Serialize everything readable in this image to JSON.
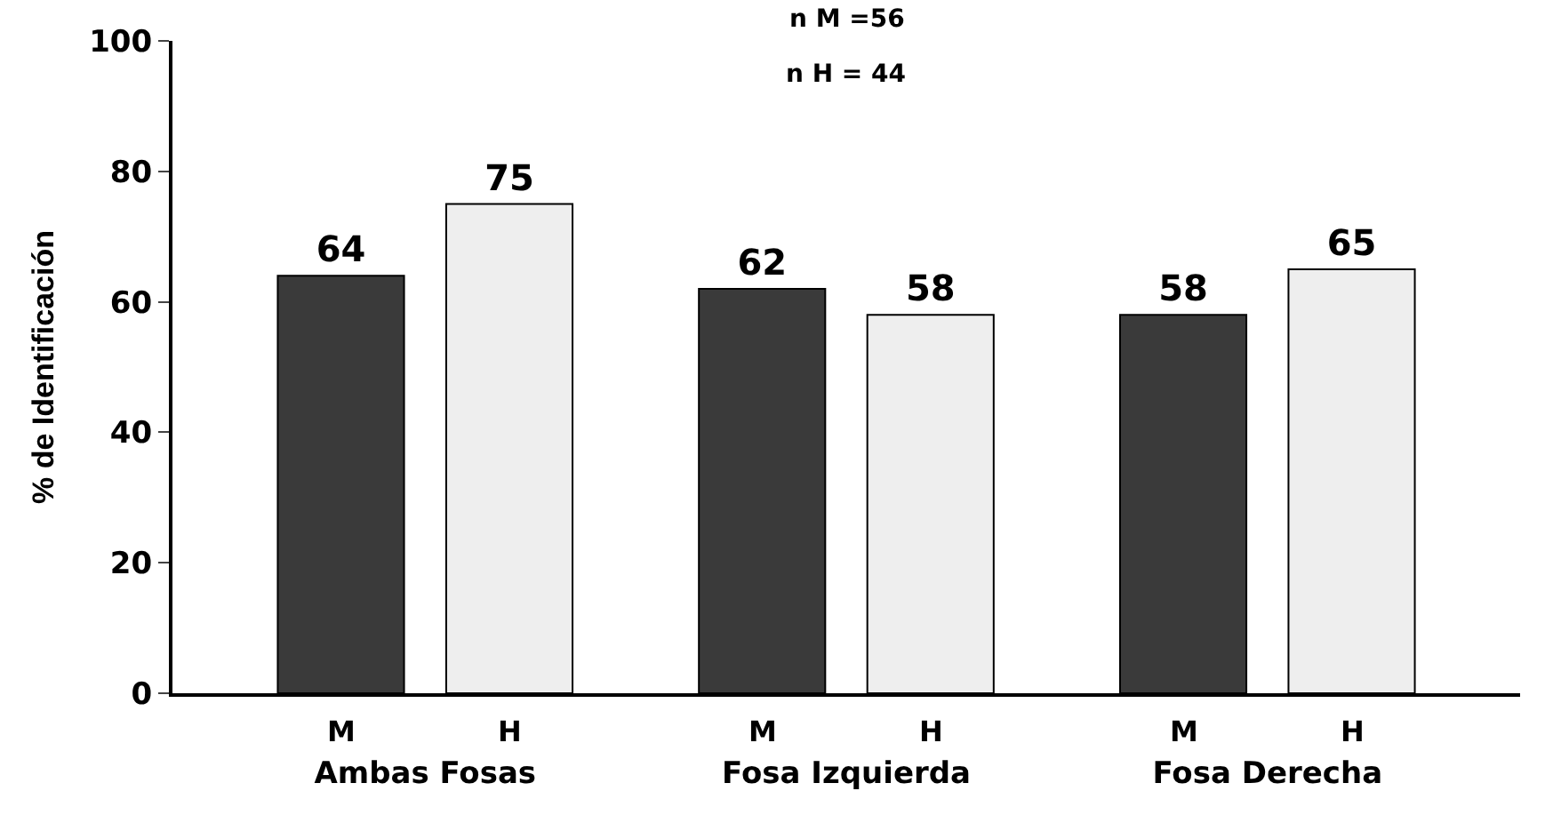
{
  "chart_data": {
    "type": "bar",
    "ylabel": "% de Identificación",
    "categories": [
      "Ambas Fosas",
      "Fosa Izquierda",
      "Fosa Derecha"
    ],
    "series": [
      {
        "name": "M",
        "color": "#3a3a3a",
        "values": [
          64,
          62,
          58
        ]
      },
      {
        "name": "H",
        "color": "#eeeeee",
        "values": [
          75,
          58,
          65
        ]
      }
    ],
    "ylim": [
      0,
      100
    ],
    "yticks": [
      0,
      20,
      40,
      60,
      80,
      100
    ],
    "data_labels": true,
    "annotations": [
      "n M =56",
      "n H = 44"
    ]
  }
}
